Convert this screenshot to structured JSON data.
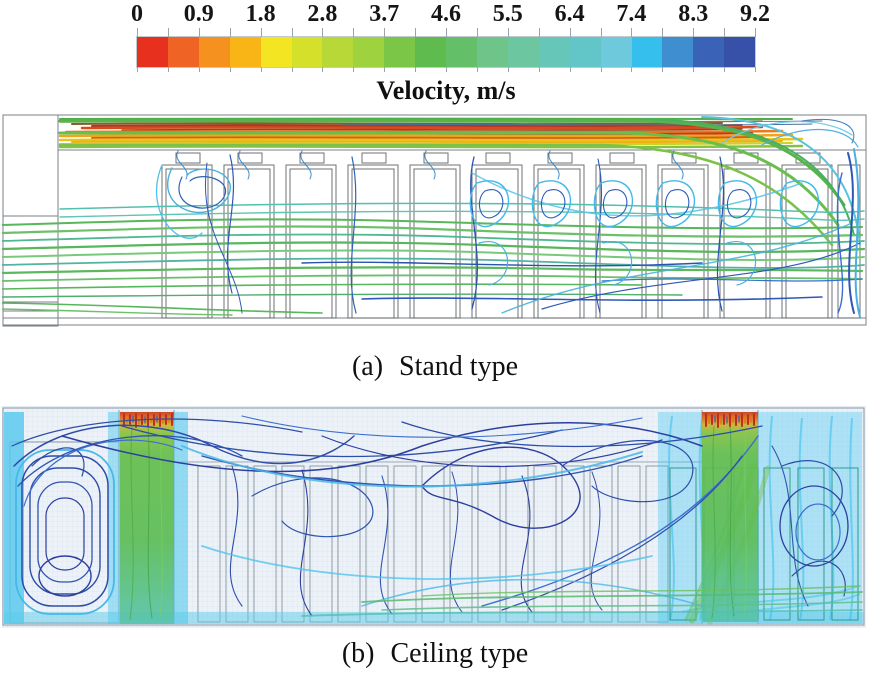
{
  "figure": {
    "type": "cfd-streamline-comparison",
    "colorbar": {
      "title": "Velocity, m/s",
      "min": 0,
      "max": 9.2,
      "tick_labels": [
        "0",
        "0.9",
        "1.8",
        "2.8",
        "3.7",
        "4.6",
        "5.5",
        "6.4",
        "7.4",
        "8.3",
        "9.2"
      ],
      "segment_colors": [
        "#e8301f",
        "#ef6424",
        "#f5921f",
        "#f9b415",
        "#f3e522",
        "#d5e02b",
        "#b8d838",
        "#9ed23f",
        "#7cc647",
        "#5fbb4d",
        "#63bf68",
        "#6fc489",
        "#6cc6a0",
        "#66c6b8",
        "#62c6c8",
        "#6fc9dd",
        "#35bfec",
        "#3f8ed0",
        "#3a63b8",
        "#3750a8"
      ]
    },
    "panels": [
      {
        "label": "(a)",
        "title": "Stand type"
      },
      {
        "label": "(b)",
        "title": "Ceiling type"
      }
    ],
    "palette": {
      "jet_red": "#d94a20",
      "jet_orange": "#f0a51a",
      "jet_yellow": "#e8c517",
      "stream_green": "#57b75a",
      "stream_teal": "#53bfae",
      "stream_cyan": "#49b8e8",
      "stream_blue": "#2e58b8",
      "stream_dark_blue": "#2c3f9f",
      "outline_gray": "#777d82",
      "mesh_background": "#edf2f8"
    }
  }
}
